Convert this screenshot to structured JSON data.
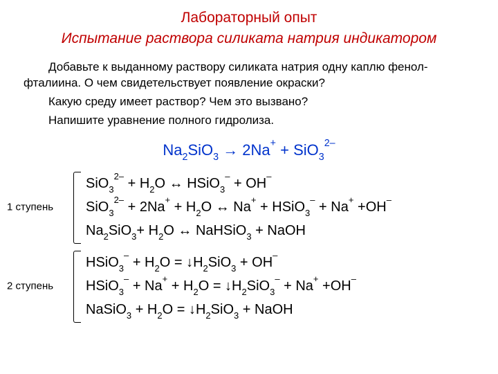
{
  "colors": {
    "title_red": "#c00000",
    "accent_blue": "#0033cc",
    "text": "#000000",
    "background": "#ffffff"
  },
  "fonts": {
    "family": "Arial",
    "title_size_pt": 21,
    "subtitle_size_pt": 21,
    "body_size_pt": 17,
    "equation_size_pt": 20,
    "label_size_pt": 15
  },
  "title": "Лабораторный опыт",
  "subtitle": "Испытание раствора силиката натрия индикатором",
  "paragraphs": [
    "Добавьте к выданному раствору силиката натрия одну каплю фенол-фталиина. О чем свидетельствует появление окраски?",
    "Какую среду имеет раствор? Чем это вызвано?",
    "Напишите уравнение полного гидролиза."
  ],
  "main_equation_html": "Na<sub>2</sub>SiO<sub>3</sub> → 2Na<sup>+</sup> + SiO<sub>3</sub><sup>2–</sup>",
  "groups": [
    {
      "label": "1 ступень",
      "lines_html": [
        "SiO<sub>3</sub><sup>2–</sup> + H<sub>2</sub>O ↔ HSiO<sub>3</sub><sup>–</sup> + OH<sup>–</sup>",
        "SiO<sub>3</sub><sup>2–</sup> + 2Na<sup>+</sup> + H<sub>2</sub>O ↔ Na<sup>+</sup> + HSiO<sub>3</sub><sup>–</sup> + Na<sup>+</sup> +OH<sup>–</sup>",
        "Na<sub>2</sub>SiO<sub>3</sub>+ H<sub>2</sub>O ↔ NaHSiO<sub>3</sub> + NaOH"
      ]
    },
    {
      "label": "2 ступень",
      "lines_html": [
        "HSiO<sub>3</sub><sup>–</sup> + H<sub>2</sub>O = ↓H<sub>2</sub>SiO<sub>3</sub> + OH<sup>–</sup>",
        "HSiO<sub>3</sub><sup>–</sup> + Na<sup>+</sup> + H<sub>2</sub>O = ↓H<sub>2</sub>SiO<sub>3</sub><sup>–</sup> + Na<sup>+</sup> +OH<sup>–</sup>",
        "NaSiO<sub>3</sub> + H<sub>2</sub>O = ↓H<sub>2</sub>SiO<sub>3</sub> + NaOH"
      ]
    }
  ]
}
